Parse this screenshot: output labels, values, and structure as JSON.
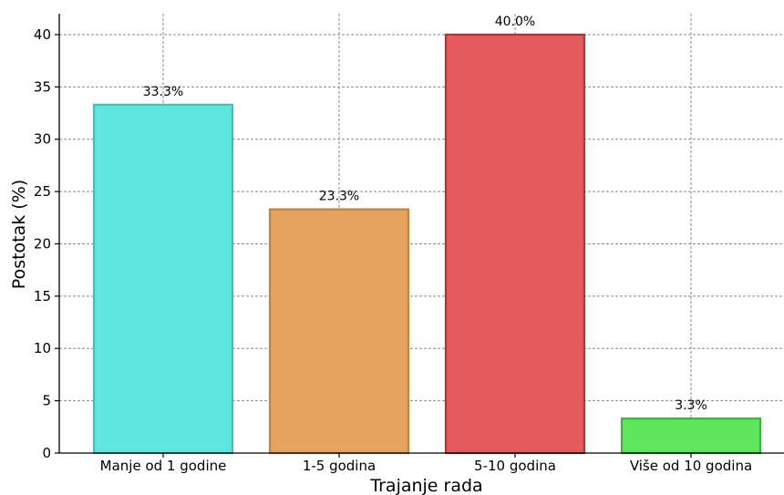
{
  "chart_data": {
    "type": "bar",
    "title": "",
    "xlabel": "Trajanje rada",
    "ylabel": "Postotak (%)",
    "categories": [
      "Manje od 1 godine",
      "1-5 godina",
      "5-10 godina",
      "Više od 10 godina"
    ],
    "values": [
      33.3,
      23.3,
      40.0,
      3.3
    ],
    "data_labels": [
      "33.3%",
      "23.3%",
      "40.0%",
      "3.3%"
    ],
    "colors": [
      "#5ee6df",
      "#e6a25e",
      "#e65a5e",
      "#5ee65e"
    ],
    "edge_colors": [
      "#4fb9b4",
      "#b8854b",
      "#a3393c",
      "#43b043"
    ],
    "ylim": [
      0,
      42
    ],
    "yticks": [
      0,
      5,
      10,
      15,
      20,
      25,
      30,
      35,
      40
    ],
    "grid": true,
    "legend": "none"
  }
}
